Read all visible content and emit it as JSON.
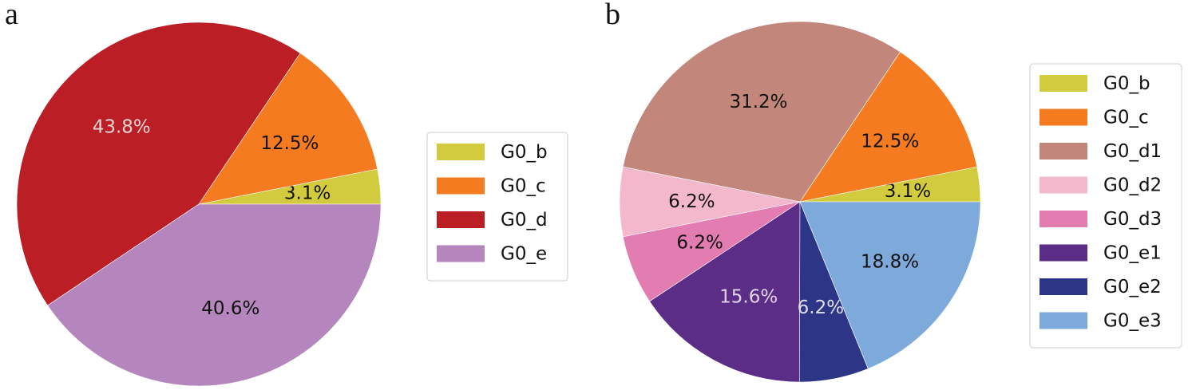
{
  "panels": [
    {
      "label": "a",
      "chart_data": {
        "type": "pie",
        "categories": [
          "G0_b",
          "G0_c",
          "G0_d",
          "G0_e"
        ],
        "values": [
          3.1,
          12.5,
          43.8,
          40.6
        ],
        "labels": [
          "3.1%",
          "12.5%",
          "43.8%",
          "40.6%"
        ],
        "colors": [
          "#d2cb3e",
          "#f47b20",
          "#bb1e24",
          "#b486bd"
        ],
        "label_colors": [
          "#111111",
          "#111111",
          "#e6d6d6",
          "#111111"
        ],
        "legend_position": "right"
      }
    },
    {
      "label": "b",
      "chart_data": {
        "type": "pie",
        "categories": [
          "G0_b",
          "G0_c",
          "G0_d1",
          "G0_d2",
          "G0_d3",
          "G0_e1",
          "G0_e2",
          "G0_e3"
        ],
        "values": [
          3.1,
          12.5,
          31.2,
          6.2,
          6.2,
          15.6,
          6.2,
          18.8
        ],
        "labels": [
          "3.1%",
          "12.5%",
          "31.2%",
          "6.2%",
          "6.2%",
          "15.6%",
          "6.2%",
          "18.8%"
        ],
        "colors": [
          "#d2cb3e",
          "#f47b20",
          "#c2877a",
          "#f4b8cd",
          "#e37cb1",
          "#5b2d86",
          "#2d3586",
          "#7eaadb"
        ],
        "label_colors": [
          "#111111",
          "#111111",
          "#111111",
          "#111111",
          "#111111",
          "#e0d4ea",
          "#e0e0f0",
          "#111111"
        ],
        "legend_position": "right"
      }
    }
  ]
}
